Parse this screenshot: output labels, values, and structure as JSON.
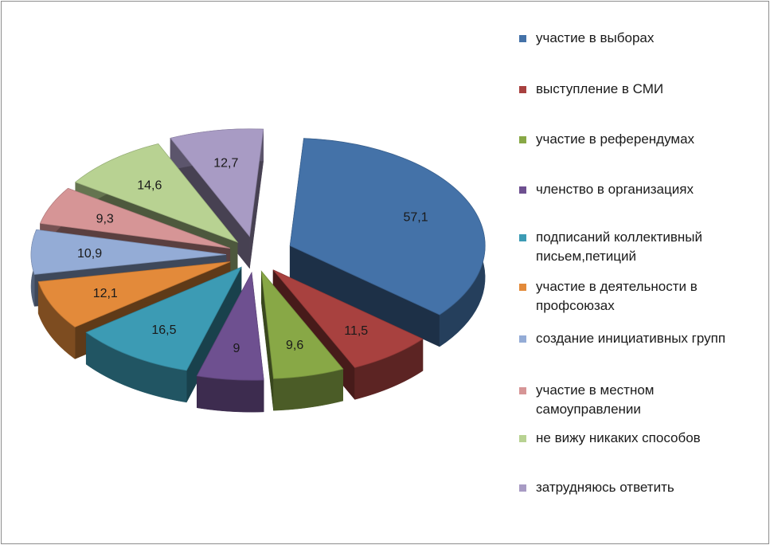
{
  "chart_data": {
    "type": "pie",
    "variant": "exploded-3d",
    "legend_position": "right",
    "series": [
      {
        "name": "участие в выборах",
        "value": 57.1,
        "label": "57,1",
        "color": "#4472a8"
      },
      {
        "name": "выступление в СМИ",
        "value": 11.5,
        "label": "11,5",
        "color": "#a8413f"
      },
      {
        "name": "участие в референдумах",
        "value": 9.6,
        "label": "9,6",
        "color": "#88a846"
      },
      {
        "name": "членство в организациях",
        "value": 9,
        "label": "9",
        "color": "#6e5090"
      },
      {
        "name": "подписаний коллективный письем,петиций",
        "value": 16.5,
        "label": "16,5",
        "color": "#3c9bb4"
      },
      {
        "name": "участие в деятельности в профсоюзах",
        "value": 12.1,
        "label": "12,1",
        "color": "#e38a3a"
      },
      {
        "name": "создание инициативных групп",
        "value": 10.9,
        "label": "10,9",
        "color": "#94acd6"
      },
      {
        "name": "участие в местном самоуправлении",
        "value": 9.3,
        "label": "9,3",
        "color": "#d69596"
      },
      {
        "name": "не вижу никаких способов",
        "value": 14.6,
        "label": "14,6",
        "color": "#b8d292"
      },
      {
        "name": "затрудняюсь ответить",
        "value": 12.7,
        "label": "12,7",
        "color": "#a89bc4"
      }
    ]
  }
}
